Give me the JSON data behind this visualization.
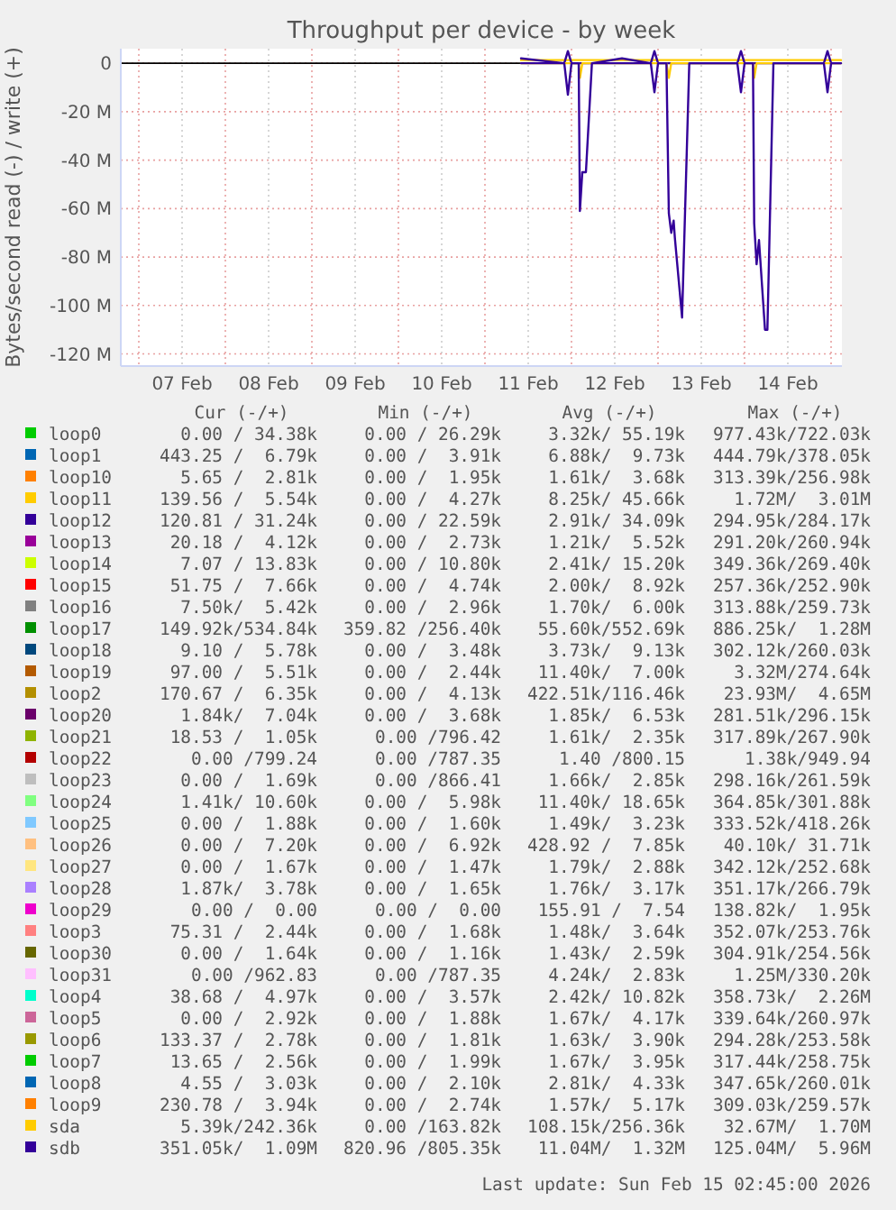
{
  "chart_data": {
    "type": "line",
    "title": "Throughput per device - by week",
    "ylabel": "Bytes/second read (-) / write (+)",
    "xlim": [
      "2026-02-06T19:00",
      "2026-02-15T03:00"
    ],
    "xticks": [
      {
        "value": "2026-02-07T00:00",
        "label": null
      },
      {
        "value": "2026-02-07T12:00",
        "label": "07 Feb"
      },
      {
        "value": "2026-02-08T00:00",
        "label": null
      },
      {
        "value": "2026-02-08T12:00",
        "label": "08 Feb"
      },
      {
        "value": "2026-02-09T00:00",
        "label": null
      },
      {
        "value": "2026-02-09T12:00",
        "label": "09 Feb"
      },
      {
        "value": "2026-02-10T00:00",
        "label": null
      },
      {
        "value": "2026-02-10T12:00",
        "label": "10 Feb"
      },
      {
        "value": "2026-02-11T00:00",
        "label": null
      },
      {
        "value": "2026-02-11T12:00",
        "label": "11 Feb"
      },
      {
        "value": "2026-02-12T00:00",
        "label": null
      },
      {
        "value": "2026-02-12T12:00",
        "label": "12 Feb"
      },
      {
        "value": "2026-02-13T00:00",
        "label": null
      },
      {
        "value": "2026-02-13T12:00",
        "label": "13 Feb"
      },
      {
        "value": "2026-02-14T00:00",
        "label": null
      },
      {
        "value": "2026-02-14T12:00",
        "label": "14 Feb"
      },
      {
        "value": "2026-02-15T00:00",
        "label": null
      }
    ],
    "ylim": [
      -125,
      6
    ],
    "yticks": [
      {
        "value": -120,
        "label": "-120 M"
      },
      {
        "value": -100,
        "label": "-100 M"
      },
      {
        "value": -80,
        "label": "-80 M"
      },
      {
        "value": -60,
        "label": "-60 M"
      },
      {
        "value": -40,
        "label": "-40 M"
      },
      {
        "value": -20,
        "label": "-20 M"
      },
      0
    ],
    "grid": true,
    "legend": "bottom",
    "marker": "none",
    "line_style": "solid",
    "x": [
      "2026-02-11T10:00",
      "2026-02-11T22:00",
      "2026-02-11T23:00",
      "2026-02-12T00:00",
      "2026-02-12T02:00",
      "2026-02-12T02:20",
      "2026-02-12T03:00",
      "2026-02-12T04:00",
      "2026-02-12T05:40",
      "2026-02-12T14:00",
      "2026-02-12T22:00",
      "2026-02-12T23:00",
      "2026-02-13T00:00",
      "2026-02-13T02:20",
      "2026-02-13T03:00",
      "2026-02-13T03:40",
      "2026-02-13T04:20",
      "2026-02-13T04:40",
      "2026-02-13T06:40",
      "2026-02-13T08:40",
      "2026-02-13T22:00",
      "2026-02-13T23:00",
      "2026-02-14T00:00",
      "2026-02-14T02:20",
      "2026-02-14T02:40",
      "2026-02-14T03:20",
      "2026-02-14T04:00",
      "2026-02-14T05:40",
      "2026-02-14T06:20",
      "2026-02-14T08:00",
      "2026-02-14T22:00",
      "2026-02-14T23:00",
      "2026-02-15T00:00",
      "2026-02-15T02:45"
    ],
    "series": [
      {
        "name": "loop0",
        "color": "#00cc00",
        "values": [
          null,
          null,
          null,
          null,
          null,
          null,
          null,
          null,
          null,
          null,
          null,
          null,
          null,
          null,
          null,
          null,
          null,
          null,
          null,
          null,
          null,
          null,
          null,
          null,
          null,
          null,
          null,
          null,
          null,
          null,
          null,
          null,
          null,
          null
        ]
      },
      {
        "name": "loop1",
        "color": "#0066b3",
        "values": [
          null,
          null,
          null,
          null,
          null,
          null,
          null,
          null,
          null,
          null,
          null,
          null,
          null,
          null,
          null,
          null,
          null,
          null,
          null,
          null,
          null,
          null,
          null,
          null,
          null,
          null,
          null,
          null,
          null,
          null,
          null,
          null,
          null,
          null
        ]
      },
      {
        "name": "loop10",
        "color": "#ff8000",
        "values": [
          null,
          null,
          null,
          null,
          null,
          null,
          null,
          null,
          null,
          null,
          null,
          null,
          null,
          null,
          null,
          null,
          null,
          null,
          null,
          null,
          null,
          null,
          null,
          null,
          null,
          null,
          null,
          null,
          null,
          null,
          null,
          null,
          null,
          null
        ]
      },
      {
        "name": "loop11",
        "color": "#ffcc00",
        "values": [
          null,
          null,
          null,
          null,
          null,
          null,
          null,
          null,
          null,
          null,
          null,
          null,
          null,
          null,
          null,
          null,
          null,
          null,
          null,
          null,
          null,
          null,
          null,
          null,
          null,
          null,
          null,
          null,
          null,
          null,
          null,
          null,
          null,
          null
        ]
      },
      {
        "name": "loop12",
        "color": "#330099",
        "values": [
          null,
          null,
          null,
          null,
          null,
          null,
          null,
          null,
          null,
          null,
          null,
          null,
          null,
          null,
          null,
          null,
          null,
          null,
          null,
          null,
          null,
          null,
          null,
          null,
          null,
          null,
          null,
          null,
          null,
          null,
          null,
          null,
          null,
          null
        ]
      },
      {
        "name": "loop13",
        "color": "#990099",
        "values": [
          null,
          null,
          null,
          null,
          null,
          null,
          null,
          null,
          null,
          null,
          null,
          null,
          null,
          null,
          null,
          null,
          null,
          null,
          null,
          null,
          null,
          null,
          null,
          null,
          null,
          null,
          null,
          null,
          null,
          null,
          null,
          null,
          null,
          null
        ]
      },
      {
        "name": "loop14",
        "color": "#ccff00",
        "values": [
          null,
          null,
          null,
          null,
          null,
          null,
          null,
          null,
          null,
          null,
          null,
          null,
          null,
          null,
          null,
          null,
          null,
          null,
          null,
          null,
          null,
          null,
          null,
          null,
          null,
          null,
          null,
          null,
          null,
          null,
          null,
          null,
          null,
          null
        ]
      },
      {
        "name": "loop15",
        "color": "#ff0000",
        "values": [
          null,
          null,
          null,
          null,
          null,
          null,
          null,
          null,
          null,
          null,
          null,
          null,
          null,
          null,
          null,
          null,
          null,
          null,
          null,
          null,
          null,
          null,
          null,
          null,
          null,
          null,
          null,
          null,
          null,
          null,
          null,
          null,
          null,
          null
        ]
      },
      {
        "name": "loop16",
        "color": "#808080",
        "values": [
          null,
          null,
          null,
          null,
          null,
          null,
          null,
          null,
          null,
          null,
          null,
          null,
          null,
          null,
          null,
          null,
          null,
          null,
          null,
          null,
          null,
          null,
          null,
          null,
          null,
          null,
          null,
          null,
          null,
          null,
          null,
          null,
          null,
          null
        ]
      },
      {
        "name": "loop17",
        "color": "#008f00",
        "values": [
          null,
          null,
          null,
          null,
          null,
          null,
          null,
          null,
          null,
          null,
          null,
          null,
          null,
          null,
          null,
          null,
          null,
          null,
          null,
          null,
          null,
          null,
          null,
          null,
          null,
          null,
          null,
          null,
          null,
          null,
          null,
          null,
          null,
          null
        ]
      },
      {
        "name": "loop18",
        "color": "#00487d",
        "values": [
          null,
          null,
          null,
          null,
          null,
          null,
          null,
          null,
          null,
          null,
          null,
          null,
          null,
          null,
          null,
          null,
          null,
          null,
          null,
          null,
          null,
          null,
          null,
          null,
          null,
          null,
          null,
          null,
          null,
          null,
          null,
          null,
          null,
          null
        ]
      },
      {
        "name": "loop19",
        "color": "#b35a00",
        "values": [
          null,
          null,
          null,
          null,
          null,
          null,
          null,
          null,
          null,
          null,
          null,
          null,
          null,
          null,
          null,
          null,
          null,
          null,
          null,
          null,
          null,
          null,
          null,
          null,
          null,
          null,
          null,
          null,
          null,
          null,
          null,
          null,
          null,
          null
        ]
      },
      {
        "name": "loop2",
        "color": "#b38f00",
        "values": [
          null,
          null,
          null,
          null,
          null,
          null,
          null,
          null,
          null,
          null,
          null,
          null,
          null,
          null,
          null,
          null,
          null,
          null,
          null,
          null,
          null,
          null,
          null,
          null,
          null,
          null,
          null,
          null,
          null,
          null,
          null,
          null,
          null,
          null
        ]
      },
      {
        "name": "loop20",
        "color": "#6b006b",
        "values": [
          null,
          null,
          null,
          null,
          null,
          null,
          null,
          null,
          null,
          null,
          null,
          null,
          null,
          null,
          null,
          null,
          null,
          null,
          null,
          null,
          null,
          null,
          null,
          null,
          null,
          null,
          null,
          null,
          null,
          null,
          null,
          null,
          null,
          null
        ]
      },
      {
        "name": "loop21",
        "color": "#8fb300",
        "values": [
          null,
          null,
          null,
          null,
          null,
          null,
          null,
          null,
          null,
          null,
          null,
          null,
          null,
          null,
          null,
          null,
          null,
          null,
          null,
          null,
          null,
          null,
          null,
          null,
          null,
          null,
          null,
          null,
          null,
          null,
          null,
          null,
          null,
          null
        ]
      },
      {
        "name": "loop22",
        "color": "#b30000",
        "values": [
          null,
          null,
          null,
          null,
          null,
          null,
          null,
          null,
          null,
          null,
          null,
          null,
          null,
          null,
          null,
          null,
          null,
          null,
          null,
          null,
          null,
          null,
          null,
          null,
          null,
          null,
          null,
          null,
          null,
          null,
          null,
          null,
          null,
          null
        ]
      },
      {
        "name": "loop23",
        "color": "#bebebe",
        "values": [
          null,
          null,
          null,
          null,
          null,
          null,
          null,
          null,
          null,
          null,
          null,
          null,
          null,
          null,
          null,
          null,
          null,
          null,
          null,
          null,
          null,
          null,
          null,
          null,
          null,
          null,
          null,
          null,
          null,
          null,
          null,
          null,
          null,
          null
        ]
      },
      {
        "name": "loop24",
        "color": "#80ff80",
        "values": [
          null,
          null,
          null,
          null,
          null,
          null,
          null,
          null,
          null,
          null,
          null,
          null,
          null,
          null,
          null,
          null,
          null,
          null,
          null,
          null,
          null,
          null,
          null,
          null,
          null,
          null,
          null,
          null,
          null,
          null,
          null,
          null,
          null,
          null
        ]
      },
      {
        "name": "loop25",
        "color": "#80c9ff",
        "values": [
          null,
          null,
          null,
          null,
          null,
          null,
          null,
          null,
          null,
          null,
          null,
          null,
          null,
          null,
          null,
          null,
          null,
          null,
          null,
          null,
          null,
          null,
          null,
          null,
          null,
          null,
          null,
          null,
          null,
          null,
          null,
          null,
          null,
          null
        ]
      },
      {
        "name": "loop26",
        "color": "#ffc080",
        "values": [
          null,
          null,
          null,
          null,
          null,
          null,
          null,
          null,
          null,
          null,
          null,
          null,
          null,
          null,
          null,
          null,
          null,
          null,
          null,
          null,
          null,
          null,
          null,
          null,
          null,
          null,
          null,
          null,
          null,
          null,
          null,
          null,
          null,
          null
        ]
      },
      {
        "name": "loop27",
        "color": "#ffe680",
        "values": [
          null,
          null,
          null,
          null,
          null,
          null,
          null,
          null,
          null,
          null,
          null,
          null,
          null,
          null,
          null,
          null,
          null,
          null,
          null,
          null,
          null,
          null,
          null,
          null,
          null,
          null,
          null,
          null,
          null,
          null,
          null,
          null,
          null,
          null
        ]
      },
      {
        "name": "loop28",
        "color": "#aa80ff",
        "values": [
          null,
          null,
          null,
          null,
          null,
          null,
          null,
          null,
          null,
          null,
          null,
          null,
          null,
          null,
          null,
          null,
          null,
          null,
          null,
          null,
          null,
          null,
          null,
          null,
          null,
          null,
          null,
          null,
          null,
          null,
          null,
          null,
          null,
          null
        ]
      },
      {
        "name": "loop29",
        "color": "#ee00cc",
        "values": [
          null,
          null,
          null,
          null,
          null,
          null,
          null,
          null,
          null,
          null,
          null,
          null,
          null,
          null,
          null,
          null,
          null,
          null,
          null,
          null,
          null,
          null,
          null,
          null,
          null,
          null,
          null,
          null,
          null,
          null,
          null,
          null,
          null,
          null
        ]
      },
      {
        "name": "loop3",
        "color": "#ff8080",
        "values": [
          null,
          null,
          null,
          null,
          null,
          null,
          null,
          null,
          null,
          null,
          null,
          null,
          null,
          null,
          null,
          null,
          null,
          null,
          null,
          null,
          null,
          null,
          null,
          null,
          null,
          null,
          null,
          null,
          null,
          null,
          null,
          null,
          null,
          null
        ]
      },
      {
        "name": "loop30",
        "color": "#666600",
        "values": [
          null,
          null,
          null,
          null,
          null,
          null,
          null,
          null,
          null,
          null,
          null,
          null,
          null,
          null,
          null,
          null,
          null,
          null,
          null,
          null,
          null,
          null,
          null,
          null,
          null,
          null,
          null,
          null,
          null,
          null,
          null,
          null,
          null,
          null
        ]
      },
      {
        "name": "loop31",
        "color": "#ffbfff",
        "values": [
          null,
          null,
          null,
          null,
          null,
          null,
          null,
          null,
          null,
          null,
          null,
          null,
          null,
          null,
          null,
          null,
          null,
          null,
          null,
          null,
          null,
          null,
          null,
          null,
          null,
          null,
          null,
          null,
          null,
          null,
          null,
          null,
          null,
          null
        ]
      },
      {
        "name": "loop4",
        "color": "#00ffcc",
        "values": [
          null,
          null,
          null,
          null,
          null,
          null,
          null,
          null,
          null,
          null,
          null,
          null,
          null,
          null,
          null,
          null,
          null,
          null,
          null,
          null,
          null,
          null,
          null,
          null,
          null,
          null,
          null,
          null,
          null,
          null,
          null,
          null,
          null,
          null
        ]
      },
      {
        "name": "loop5",
        "color": "#cc6699",
        "values": [
          null,
          null,
          null,
          null,
          null,
          null,
          null,
          null,
          null,
          null,
          null,
          null,
          null,
          null,
          null,
          null,
          null,
          null,
          null,
          null,
          null,
          null,
          null,
          null,
          null,
          null,
          null,
          null,
          null,
          null,
          null,
          null,
          null,
          null
        ]
      },
      {
        "name": "loop6",
        "color": "#999900",
        "values": [
          null,
          null,
          null,
          null,
          null,
          null,
          null,
          null,
          null,
          null,
          null,
          null,
          null,
          null,
          null,
          null,
          null,
          null,
          null,
          null,
          null,
          null,
          null,
          null,
          null,
          null,
          null,
          null,
          null,
          null,
          null,
          null,
          null,
          null
        ]
      },
      {
        "name": "loop7",
        "color": "#00cc00",
        "values": [
          null,
          null,
          null,
          null,
          null,
          null,
          null,
          null,
          null,
          null,
          null,
          null,
          null,
          null,
          null,
          null,
          null,
          null,
          null,
          null,
          null,
          null,
          null,
          null,
          null,
          null,
          null,
          null,
          null,
          null,
          null,
          null,
          null,
          null
        ]
      },
      {
        "name": "loop8",
        "color": "#0066b3",
        "values": [
          null,
          null,
          null,
          null,
          null,
          null,
          null,
          null,
          null,
          null,
          null,
          null,
          null,
          null,
          null,
          null,
          null,
          null,
          null,
          null,
          null,
          null,
          null,
          null,
          null,
          null,
          null,
          null,
          null,
          null,
          null,
          null,
          null,
          null
        ]
      },
      {
        "name": "loop9",
        "color": "#ff8000",
        "values": [
          null,
          null,
          null,
          null,
          null,
          null,
          null,
          null,
          null,
          null,
          null,
          null,
          null,
          null,
          null,
          null,
          null,
          null,
          null,
          null,
          null,
          null,
          null,
          null,
          null,
          null,
          null,
          null,
          null,
          null,
          null,
          null,
          null,
          null
        ]
      },
      {
        "name": "sda",
        "color": "#ffcc00",
        "values": [
          1.3,
          1.3,
          1.3,
          1.3,
          1.3,
          1.3,
          1.3,
          1.3,
          1.3,
          1.3,
          1.3,
          1.3,
          1.3,
          1.3,
          1.3,
          1.3,
          1.3,
          1.3,
          1.3,
          1.3,
          1.3,
          1.3,
          1.3,
          1.3,
          1.3,
          1.3,
          1.3,
          1.3,
          1.3,
          1.3,
          1.3,
          1.3,
          1.3,
          1.3
        ]
      },
      {
        "name": "sdb",
        "color": "#330099",
        "values": [
          2,
          0,
          5,
          0,
          0,
          0,
          0,
          0,
          0,
          2,
          0,
          5,
          0,
          0,
          0,
          0,
          0,
          0,
          0,
          0,
          0,
          5,
          0,
          0,
          0,
          0,
          0,
          0,
          0,
          0,
          0,
          5,
          0,
          0
        ]
      },
      {
        "color": "#ffcc00",
        "values": [
          0,
          0,
          0,
          0,
          0,
          -6,
          0,
          0,
          0,
          0,
          0,
          0,
          0,
          0,
          -6,
          0,
          0,
          0,
          0,
          0,
          0,
          0,
          0,
          0,
          -6,
          0,
          0,
          0,
          0,
          0,
          0,
          0,
          0,
          0
        ]
      },
      {
        "color": "#330099",
        "values": [
          0,
          0,
          -13,
          0,
          0,
          -61,
          -45,
          -45,
          0,
          0,
          0,
          -12,
          0,
          0,
          -62,
          -70,
          -65,
          -72,
          -105,
          0,
          0,
          -12,
          0,
          0,
          -66,
          -83,
          -73,
          -110,
          -110,
          0,
          0,
          -12,
          0,
          0
        ]
      }
    ],
    "annotations": [
      "Cur (-/+)",
      "Min (-/+)",
      "Avg (-/+)",
      "Max (-/+)",
      "0.00 / 34.38k",
      "0.00 / 26.29k",
      "3.32k/ 55.19k",
      "977.43k/722.03k",
      "443.25 /  6.79k",
      "0.00 /  3.91k",
      "6.88k/  9.73k",
      "444.79k/378.05k",
      "5.65 /  2.81k",
      "0.00 /  1.95k",
      "1.61k/  3.68k",
      "313.39k/256.98k",
      "139.56 /  5.54k",
      "0.00 /  4.27k",
      "8.25k/ 45.66k",
      "1.72M/  3.01M",
      "120.81 / 31.24k",
      "0.00 / 22.59k",
      "2.91k/ 34.09k",
      "294.95k/284.17k",
      "20.18 /  4.12k",
      "0.00 /  2.73k",
      "1.21k/  5.52k",
      "291.20k/260.94k",
      "7.07 / 13.83k",
      "0.00 / 10.80k",
      "2.41k/ 15.20k",
      "349.36k/269.40k",
      "51.75 /  7.66k",
      "0.00 /  4.74k",
      "2.00k/  8.92k",
      "257.36k/252.90k",
      "7.50k/  5.42k",
      "0.00 /  2.96k",
      "1.70k/  6.00k",
      "313.88k/259.73k",
      "149.92k/534.84k",
      "359.82 /256.40k",
      "55.60k/552.69k",
      "886.25k/  1.28M",
      "9.10 /  5.78k",
      "0.00 /  3.48k",
      "3.73k/  9.13k",
      "302.12k/260.03k",
      "97.00 /  5.51k",
      "0.00 /  2.44k",
      "11.40k/  7.00k",
      "3.32M/274.64k",
      "170.67 /  6.35k",
      "0.00 /  4.13k",
      "422.51k/116.46k",
      "23.93M/  4.65M",
      "1.84k/  7.04k",
      "0.00 /  3.68k",
      "1.85k/  6.53k",
      "281.51k/296.15k",
      "18.53 /  1.05k",
      "0.00 /796.42",
      "1.61k/  2.35k",
      "317.89k/267.90k",
      "0.00 /799.24",
      "0.00 /787.35",
      "1.40 /800.15",
      "1.38k/949.94",
      "0.00 /  1.69k",
      "0.00 /866.41",
      "1.66k/  2.85k",
      "298.16k/261.59k",
      "1.41k/ 10.60k",
      "0.00 /  5.98k",
      "11.40k/ 18.65k",
      "364.85k/301.88k",
      "0.00 /  1.88k",
      "0.00 /  1.60k",
      "1.49k/  3.23k",
      "333.52k/418.26k",
      "0.00 /  7.20k",
      "0.00 /  6.92k",
      "428.92 /  7.85k",
      "40.10k/ 31.71k",
      "0.00 /  1.67k",
      "0.00 /  1.47k",
      "1.79k/  2.88k",
      "342.12k/252.68k",
      "1.87k/  3.78k",
      "0.00 /  1.65k",
      "1.76k/  3.17k",
      "351.17k/266.79k",
      "0.00 /  0.00",
      "0.00 /  0.00",
      "155.91 /  7.54",
      "138.82k/  1.95k",
      "75.31 /  2.44k",
      "0.00 /  1.68k",
      "1.48k/  3.64k",
      "352.07k/253.76k",
      "0.00 /  1.64k",
      "0.00 /  1.16k",
      "1.43k/  2.59k",
      "304.91k/254.56k",
      "0.00 /962.83",
      "0.00 /787.35",
      "4.24k/  2.83k",
      "1.25M/330.20k",
      "38.68 /  4.97k",
      "0.00 /  3.57k",
      "2.42k/ 10.82k",
      "358.73k/  2.26M",
      "0.00 /  2.92k",
      "0.00 /  1.88k",
      "1.67k/  4.17k",
      "339.64k/260.97k",
      "133.37 /  2.78k",
      "0.00 /  1.81k",
      "1.63k/  3.90k",
      "294.28k/253.58k",
      "13.65 /  2.56k",
      "0.00 /  1.99k",
      "1.67k/  3.95k",
      "317.44k/258.75k",
      "4.55 /  3.03k",
      "0.00 /  2.10k",
      "2.81k/  4.33k",
      "347.65k/260.01k",
      "230.78 /  3.94k",
      "0.00 /  2.74k",
      "1.57k/  5.17k",
      "309.03k/259.57k",
      "5.39k/242.36k",
      "0.00 /163.82k",
      "108.15k/256.36k",
      "32.67M/  1.70M",
      "351.05k/  1.09M",
      "820.96 /805.35k",
      "11.04M/  1.32M",
      "125.04M/  5.96M",
      "Last update: Sun Feb 15 02:45:00 2026"
    ]
  }
}
